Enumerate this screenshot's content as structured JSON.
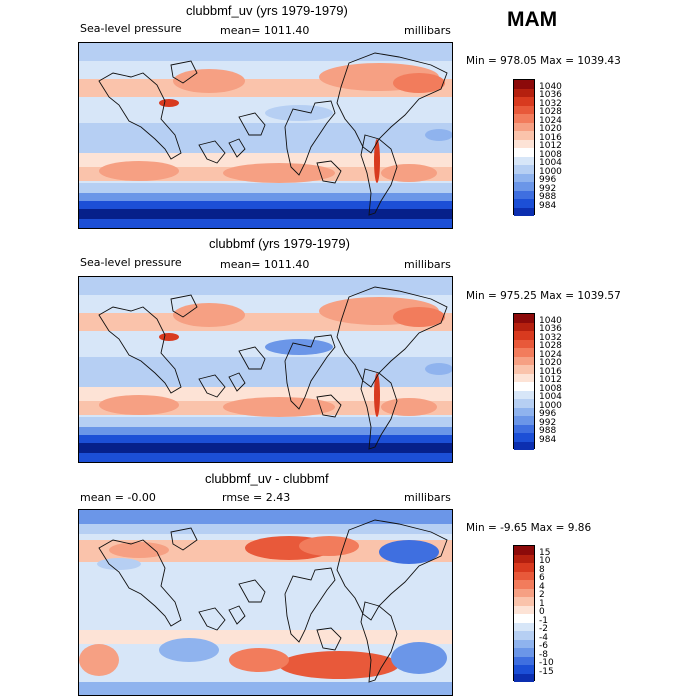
{
  "season": "MAM",
  "panels": [
    {
      "title": "clubbmf_uv (yrs 1979-1979)",
      "left_label": "Sea-level pressure",
      "center_label": "mean= 1011.40",
      "units": "millibars",
      "minmax": "Min = 978.05 Max = 1039.43",
      "field": "pressure",
      "colorbar": {
        "labels": [
          "1040",
          "1036",
          "1032",
          "1028",
          "1024",
          "1020",
          "1016",
          "1012",
          "1008",
          "1004",
          "1000",
          "996",
          "992",
          "988",
          "984"
        ],
        "colors": [
          "#8c0a0a",
          "#b5200f",
          "#d83a1f",
          "#e8593a",
          "#f27c5c",
          "#f6a083",
          "#fac3ab",
          "#fde3d6",
          "#ffffff",
          "#d7e6f8",
          "#b6cff3",
          "#8fb3ee",
          "#6b96e8",
          "#3f6fe0",
          "#1c4fd6",
          "#0c2fb0"
        ]
      }
    },
    {
      "title": "clubbmf (yrs 1979-1979)",
      "left_label": "Sea-level pressure",
      "center_label": "mean= 1011.40",
      "units": "millibars",
      "minmax": "Min = 975.25 Max = 1039.57",
      "field": "pressure",
      "colorbar": {
        "labels": [
          "1040",
          "1036",
          "1032",
          "1028",
          "1024",
          "1020",
          "1016",
          "1012",
          "1008",
          "1004",
          "1000",
          "996",
          "992",
          "988",
          "984"
        ],
        "colors": [
          "#8c0a0a",
          "#b5200f",
          "#d83a1f",
          "#e8593a",
          "#f27c5c",
          "#f6a083",
          "#fac3ab",
          "#fde3d6",
          "#ffffff",
          "#d7e6f8",
          "#b6cff3",
          "#8fb3ee",
          "#6b96e8",
          "#3f6fe0",
          "#1c4fd6",
          "#0c2fb0"
        ]
      }
    },
    {
      "title": "clubbmf_uv - clubbmf",
      "left_label": "mean =   -0.00",
      "center_label": "rmse =    2.43",
      "units": "millibars",
      "minmax": "Min =  -9.65 Max =    9.86",
      "field": "difference",
      "colorbar": {
        "labels": [
          "15",
          "10",
          "8",
          "6",
          "4",
          "2",
          "1",
          "0",
          "-1",
          "-2",
          "-4",
          "-6",
          "-8",
          "-10",
          "-15"
        ],
        "colors": [
          "#8c0a0a",
          "#b5200f",
          "#d83a1f",
          "#e8593a",
          "#f27c5c",
          "#f6a083",
          "#fac3ab",
          "#fde3d6",
          "#ffffff",
          "#d7e6f8",
          "#b6cff3",
          "#8fb3ee",
          "#6b96e8",
          "#3f6fe0",
          "#1c4fd6",
          "#0c2fb0"
        ]
      }
    }
  ]
}
